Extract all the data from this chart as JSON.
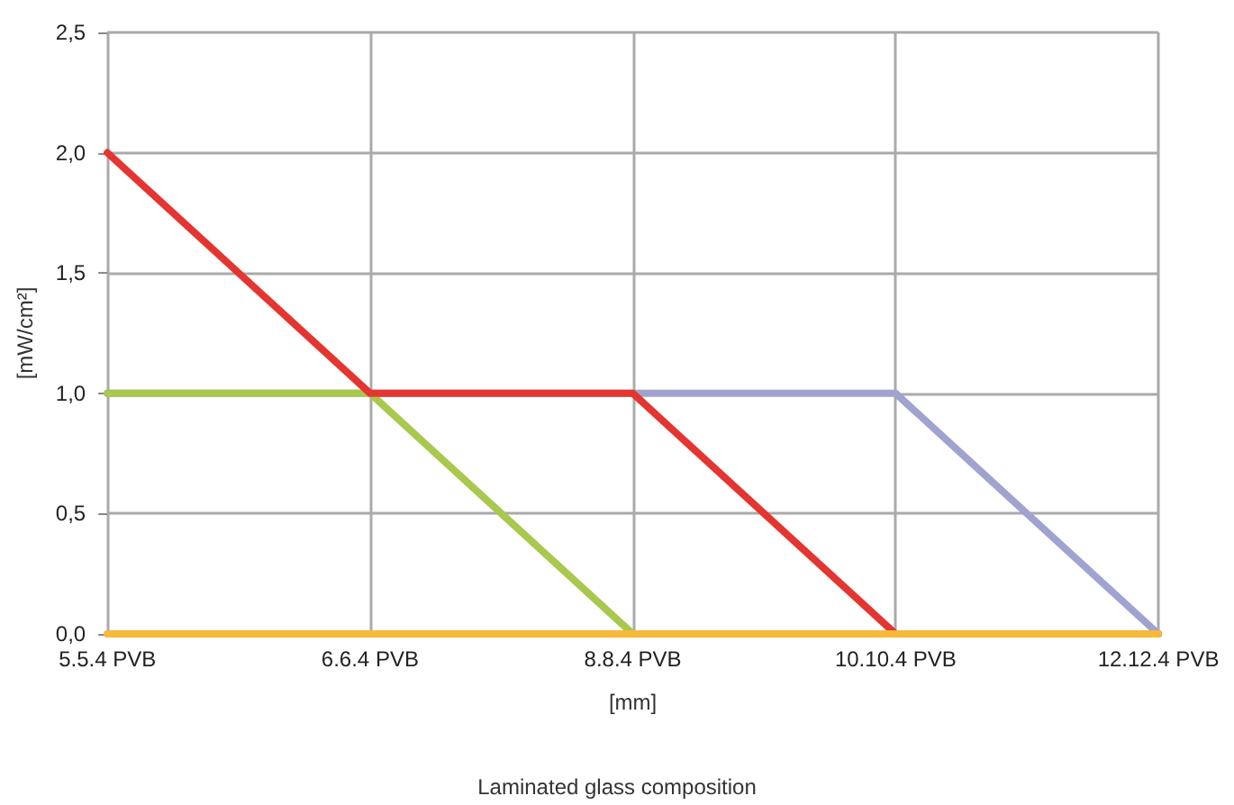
{
  "chart_data": {
    "type": "line",
    "xlabel": "[mm]",
    "ylabel": "[mW/cm²]",
    "annotations": [
      "Laminated glass composition"
    ],
    "categories": [
      "5.5.4 PVB",
      "6.6.4 PVB",
      "8.8.4 PVB",
      "10.10.4 PVB",
      "12.12.4 PVB"
    ],
    "series": [
      {
        "color": "#a0a3d0",
        "values": [
          1,
          1,
          1,
          1,
          0
        ]
      },
      {
        "color": "#a8c84e",
        "values": [
          1,
          1,
          0,
          null,
          null
        ]
      },
      {
        "color": "#e43530",
        "values": [
          2,
          1,
          1,
          0,
          0
        ]
      },
      {
        "color": "#f8b838",
        "values": [
          0,
          0,
          0,
          0,
          0
        ]
      }
    ],
    "ylim": [
      0,
      2.5
    ],
    "yticks": [
      {
        "value": 0,
        "label": "0,0"
      },
      {
        "value": 0.5,
        "label": "0,5"
      },
      {
        "value": 1,
        "label": "1,0"
      },
      {
        "value": 1.5,
        "label": "1,5"
      },
      {
        "value": 2,
        "label": "2,0"
      },
      {
        "value": 2.5,
        "label": "2,5"
      }
    ],
    "grid": true,
    "marker": "none",
    "line_style": "solid"
  }
}
